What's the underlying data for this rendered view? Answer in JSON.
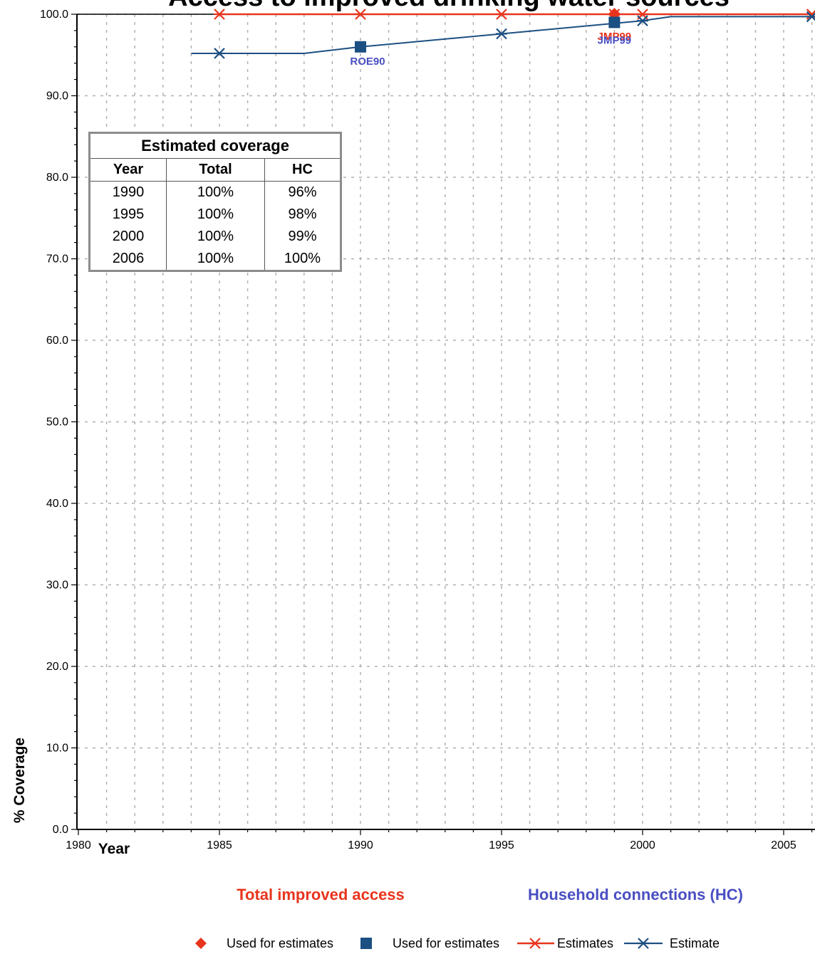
{
  "chart_data": {
    "type": "line",
    "title": "Access to improved drinking water sources",
    "xlabel": "Year",
    "ylabel": "% Coverage",
    "xlim": [
      1980,
      2006
    ],
    "ylim": [
      0,
      100
    ],
    "x_ticks": [
      1980,
      1985,
      1990,
      1995,
      2000,
      2005
    ],
    "y_ticks": [
      "0.0",
      "10.0",
      "20.0",
      "30.0",
      "40.0",
      "50.0",
      "60.0",
      "70.0",
      "80.0",
      "90.0",
      "100.0"
    ],
    "grid": true,
    "series": [
      {
        "name": "Estimates",
        "group": "Total improved access",
        "color": "#e8341c",
        "line": [
          [
            1985,
            100
          ],
          [
            2006,
            100
          ]
        ],
        "estimate_markers": [
          [
            1985,
            100
          ],
          [
            1990,
            100
          ],
          [
            1995,
            100
          ],
          [
            1999,
            100
          ],
          [
            2000,
            100
          ],
          [
            2006,
            100
          ]
        ],
        "survey_points": [
          {
            "x": 1999,
            "y": 100,
            "label": "JMP99"
          }
        ]
      },
      {
        "name": "Estimate",
        "group": "Household connections (HC)",
        "color": "#1c4f82",
        "line": [
          [
            1984,
            95.2
          ],
          [
            1988,
            95.2
          ],
          [
            1990,
            96
          ],
          [
            1995,
            97.6
          ],
          [
            2000,
            99.2
          ],
          [
            2001,
            99.7
          ],
          [
            2006,
            99.7
          ]
        ],
        "estimate_markers": [
          [
            1985,
            95.2
          ],
          [
            1995,
            97.6
          ],
          [
            2000,
            99.2
          ],
          [
            2006,
            99.7
          ]
        ],
        "survey_points": [
          {
            "x": 1990,
            "y": 96,
            "label": "ROE90"
          },
          {
            "x": 1999,
            "y": 99,
            "label": "JMP99"
          }
        ]
      }
    ],
    "section_labels": {
      "total": "Total improved access",
      "hc": "Household connections (HC)"
    },
    "legend": [
      {
        "label": "Used for estimates",
        "marker": "diamond",
        "color": "#e8341c"
      },
      {
        "label": "Used for estimates",
        "marker": "square",
        "color": "#1c4f82"
      },
      {
        "label": "Estimates",
        "marker": "asterisk-line",
        "color": "#e8341c"
      },
      {
        "label": "Estimate",
        "marker": "asterisk-line",
        "color": "#1c4f82"
      }
    ],
    "legend_placement": "bottom",
    "table": {
      "caption": "Estimated coverage",
      "headers": [
        "Year",
        "Total",
        "HC"
      ],
      "rows": [
        [
          "1990",
          "100%",
          "96%"
        ],
        [
          "1995",
          "100%",
          "98%"
        ],
        [
          "2000",
          "100%",
          "99%"
        ],
        [
          "2006",
          "100%",
          "100%"
        ]
      ]
    }
  },
  "colors": {
    "total": "#e8341c",
    "hc_line": "#1c4f82",
    "hc_label": "#4a4fc2",
    "grid": "#b0b0b0"
  }
}
